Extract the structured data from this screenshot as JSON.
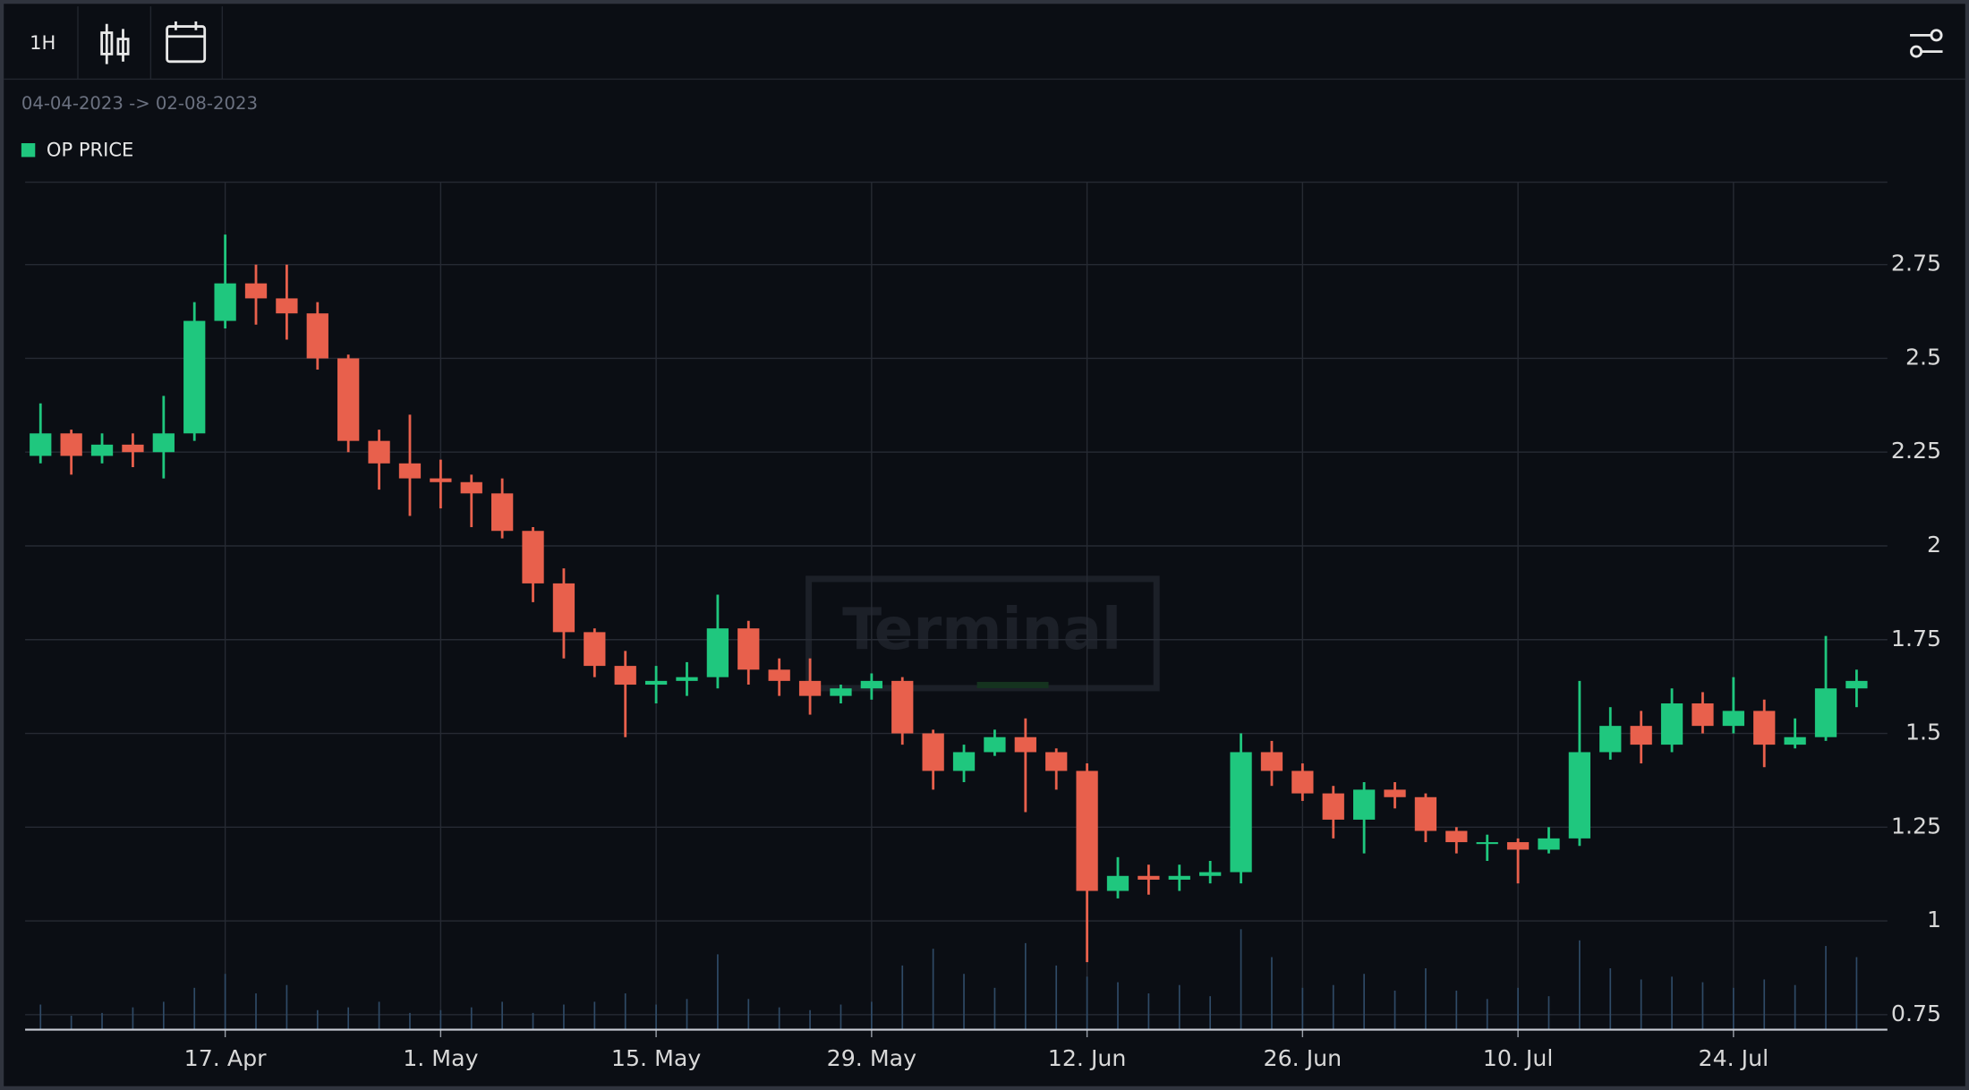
{
  "toolbar": {
    "interval": "1H"
  },
  "chart_data": {
    "type": "candlestick",
    "subtitle": "04-04-2023 -> 02-08-2023",
    "watermark": "Terminal",
    "grid": true,
    "xlim": [
      "2023-04-04",
      "2023-08-03"
    ],
    "xticks": [
      {
        "value": "2023-04-17",
        "label": "17. Apr"
      },
      {
        "value": "2023-05-01",
        "label": "1. May"
      },
      {
        "value": "2023-05-15",
        "label": "15. May"
      },
      {
        "value": "2023-05-29",
        "label": "29. May"
      },
      {
        "value": "2023-06-12",
        "label": "12. Jun"
      },
      {
        "value": "2023-06-26",
        "label": "26. Jun"
      },
      {
        "value": "2023-07-10",
        "label": "10. Jul"
      },
      {
        "value": "2023-07-24",
        "label": "24. Jul"
      }
    ],
    "ylim": [
      0.71,
      2.97
    ],
    "yticks": [
      0.75,
      1,
      1.25,
      1.5,
      1.75,
      2,
      2.25,
      2.5,
      2.75
    ],
    "series": [
      {
        "name": "OP PRICE",
        "color": "#1fc77e",
        "down_color": "#e8604c",
        "x": [
          "2023-04-05",
          "2023-04-07",
          "2023-04-09",
          "2023-04-11",
          "2023-04-13",
          "2023-04-15",
          "2023-04-17",
          "2023-04-19",
          "2023-04-21",
          "2023-04-23",
          "2023-04-25",
          "2023-04-27",
          "2023-04-29",
          "2023-05-01",
          "2023-05-03",
          "2023-05-05",
          "2023-05-07",
          "2023-05-09",
          "2023-05-11",
          "2023-05-13",
          "2023-05-15",
          "2023-05-17",
          "2023-05-19",
          "2023-05-21",
          "2023-05-23",
          "2023-05-25",
          "2023-05-27",
          "2023-05-29",
          "2023-05-31",
          "2023-06-02",
          "2023-06-04",
          "2023-06-06",
          "2023-06-08",
          "2023-06-10",
          "2023-06-12",
          "2023-06-14",
          "2023-06-16",
          "2023-06-18",
          "2023-06-20",
          "2023-06-22",
          "2023-06-24",
          "2023-06-26",
          "2023-06-28",
          "2023-06-30",
          "2023-07-02",
          "2023-07-04",
          "2023-07-06",
          "2023-07-08",
          "2023-07-10",
          "2023-07-12",
          "2023-07-14",
          "2023-07-16",
          "2023-07-18",
          "2023-07-20",
          "2023-07-22",
          "2023-07-24",
          "2023-07-26",
          "2023-07-28",
          "2023-07-30",
          "2023-08-01"
        ],
        "open": [
          2.24,
          2.3,
          2.24,
          2.27,
          2.25,
          2.3,
          2.6,
          2.7,
          2.66,
          2.62,
          2.5,
          2.28,
          2.22,
          2.18,
          2.17,
          2.14,
          2.04,
          1.9,
          1.77,
          1.68,
          1.63,
          1.64,
          1.65,
          1.78,
          1.67,
          1.64,
          1.6,
          1.62,
          1.64,
          1.5,
          1.4,
          1.45,
          1.49,
          1.45,
          1.4,
          1.08,
          1.12,
          1.11,
          1.12,
          1.13,
          1.45,
          1.4,
          1.34,
          1.27,
          1.35,
          1.33,
          1.24,
          1.21,
          1.21,
          1.19,
          1.22,
          1.45,
          1.52,
          1.47,
          1.58,
          1.52,
          1.56,
          1.47,
          1.49,
          1.62
        ],
        "high": [
          2.38,
          2.31,
          2.3,
          2.3,
          2.4,
          2.65,
          2.83,
          2.75,
          2.75,
          2.65,
          2.51,
          2.31,
          2.35,
          2.23,
          2.19,
          2.18,
          2.05,
          1.94,
          1.78,
          1.72,
          1.68,
          1.69,
          1.87,
          1.8,
          1.7,
          1.7,
          1.63,
          1.66,
          1.65,
          1.51,
          1.47,
          1.51,
          1.54,
          1.46,
          1.42,
          1.17,
          1.15,
          1.15,
          1.16,
          1.5,
          1.48,
          1.42,
          1.36,
          1.37,
          1.37,
          1.34,
          1.25,
          1.23,
          1.22,
          1.25,
          1.64,
          1.57,
          1.56,
          1.62,
          1.61,
          1.65,
          1.59,
          1.54,
          1.76,
          1.67
        ],
        "low": [
          2.22,
          2.19,
          2.22,
          2.21,
          2.18,
          2.28,
          2.58,
          2.59,
          2.55,
          2.47,
          2.25,
          2.15,
          2.08,
          2.1,
          2.05,
          2.02,
          1.85,
          1.7,
          1.65,
          1.49,
          1.58,
          1.6,
          1.62,
          1.63,
          1.6,
          1.55,
          1.58,
          1.59,
          1.47,
          1.35,
          1.37,
          1.44,
          1.29,
          1.35,
          0.89,
          1.06,
          1.07,
          1.08,
          1.1,
          1.1,
          1.36,
          1.32,
          1.22,
          1.18,
          1.3,
          1.21,
          1.18,
          1.16,
          1.1,
          1.18,
          1.2,
          1.43,
          1.42,
          1.45,
          1.5,
          1.5,
          1.41,
          1.46,
          1.48,
          1.57
        ],
        "close": [
          2.3,
          2.24,
          2.27,
          2.25,
          2.3,
          2.6,
          2.7,
          2.66,
          2.62,
          2.5,
          2.28,
          2.22,
          2.18,
          2.17,
          2.14,
          2.04,
          1.9,
          1.77,
          1.68,
          1.63,
          1.64,
          1.65,
          1.78,
          1.67,
          1.64,
          1.6,
          1.62,
          1.64,
          1.5,
          1.4,
          1.45,
          1.49,
          1.45,
          1.4,
          1.08,
          1.12,
          1.11,
          1.12,
          1.13,
          1.45,
          1.4,
          1.34,
          1.27,
          1.35,
          1.33,
          1.24,
          1.21,
          1.21,
          1.19,
          1.22,
          1.45,
          1.52,
          1.47,
          1.58,
          1.52,
          1.56,
          1.47,
          1.49,
          1.62,
          1.64
        ],
        "volume": [
          18,
          10,
          12,
          16,
          20,
          30,
          40,
          26,
          32,
          14,
          16,
          20,
          12,
          14,
          16,
          20,
          12,
          18,
          20,
          26,
          18,
          22,
          54,
          22,
          16,
          14,
          18,
          20,
          46,
          58,
          40,
          30,
          62,
          46,
          38,
          34,
          26,
          32,
          24,
          72,
          52,
          30,
          32,
          40,
          28,
          44,
          28,
          22,
          30,
          24,
          64,
          44,
          36,
          38,
          34,
          30,
          36,
          32,
          60,
          52
        ]
      }
    ]
  }
}
